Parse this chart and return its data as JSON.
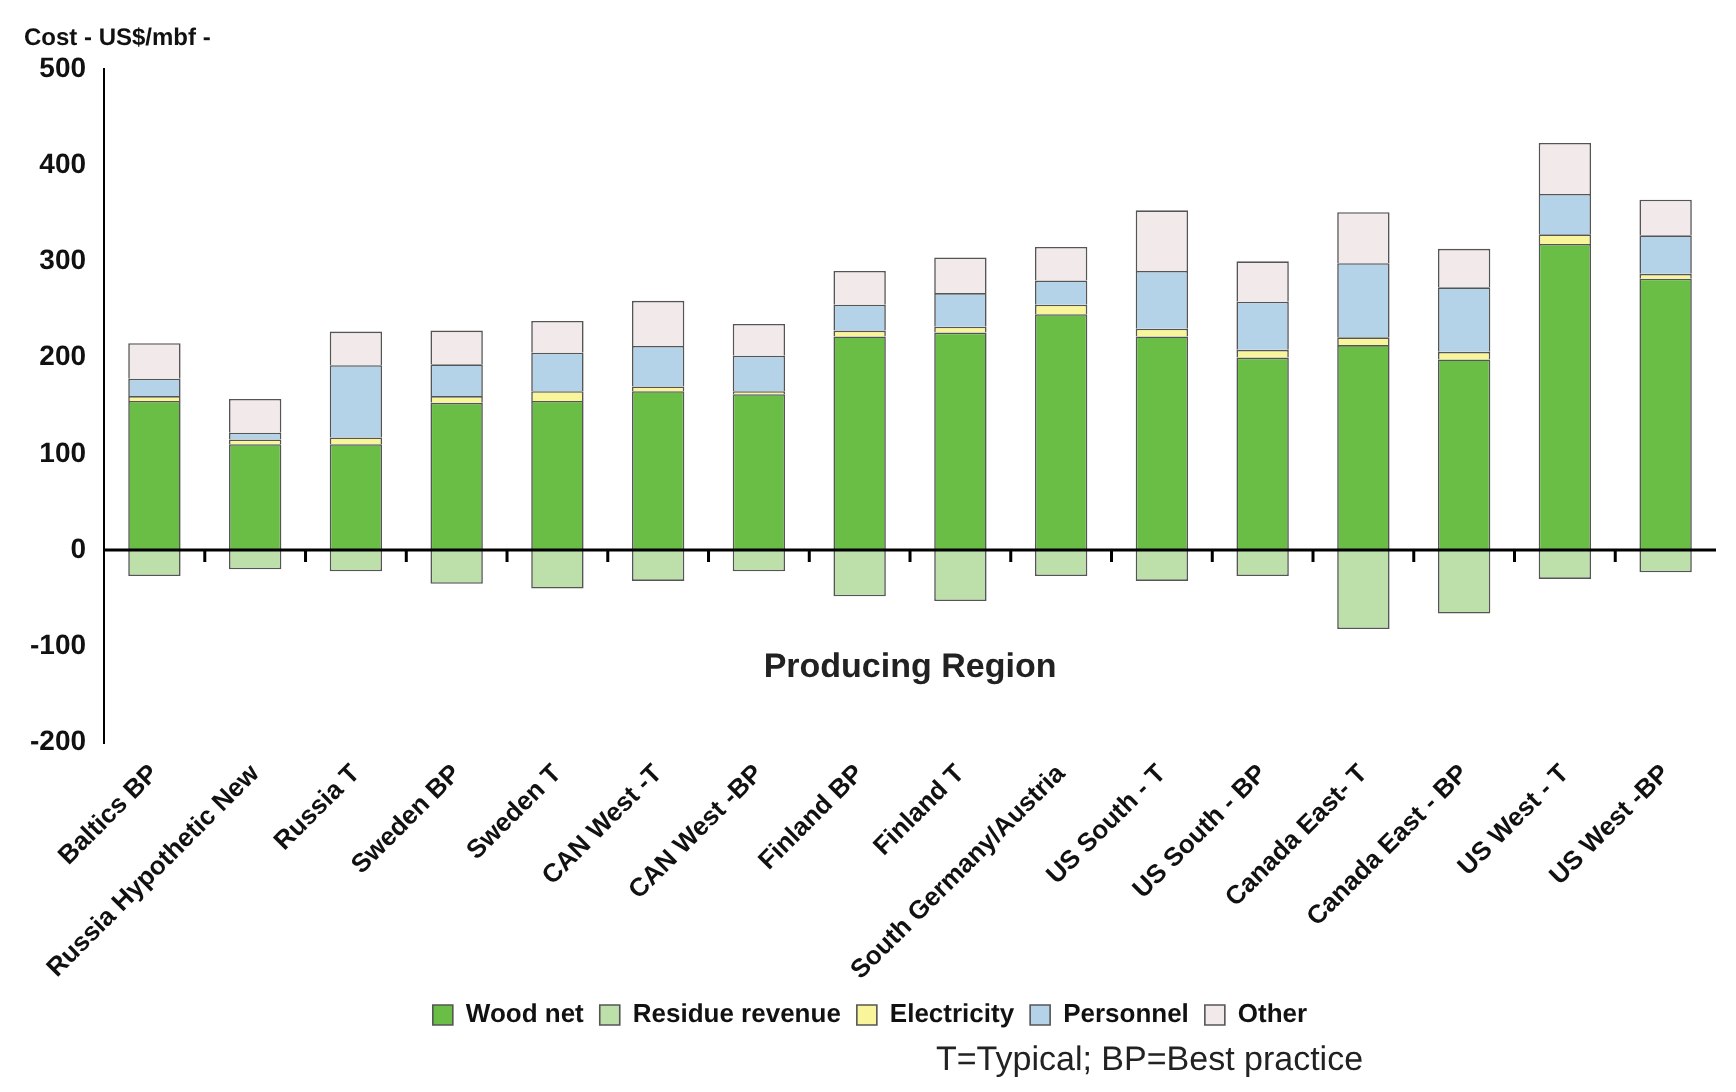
{
  "chart_data": {
    "type": "bar",
    "ylabel": "Cost - US$/mbf -",
    "xlabel": "Producing Region",
    "stacked": true,
    "legend": "bottom",
    "ylim": [
      -200,
      500
    ],
    "yticks": [
      -200,
      -100,
      0,
      100,
      200,
      300,
      400,
      500
    ],
    "categories": [
      "Baltics BP",
      "Russia Hypothetic New",
      "Russia T",
      "Sweden BP",
      "Sweden T",
      "CAN West -T",
      "CAN West -BP",
      "Finland BP",
      "Finland T",
      "South Germany/Austria",
      "US South - T",
      "US South - BP",
      "Canada East- T",
      "Canada East - BP",
      "US West - T",
      "US West -BP"
    ],
    "series": [
      {
        "name": "Wood net",
        "color": "#6abd45",
        "values": [
          155,
          110,
          110,
          153,
          155,
          165,
          162,
          222,
          226,
          245,
          222,
          200,
          213,
          198,
          318,
          282
        ]
      },
      {
        "name": "Residue revenue",
        "color": "#bddfaa",
        "values": [
          -27,
          -20,
          -22,
          -35,
          -40,
          -32,
          -22,
          -48,
          -53,
          -27,
          -32,
          -27,
          -82,
          -66,
          -30,
          -23
        ]
      },
      {
        "name": "Electricity",
        "color": "#f8f59a",
        "values": [
          5,
          5,
          7,
          7,
          10,
          5,
          3,
          6,
          6,
          10,
          8,
          8,
          8,
          8,
          10,
          5
        ]
      },
      {
        "name": "Personnel",
        "color": "#b5d3e8",
        "values": [
          18,
          7,
          75,
          33,
          40,
          42,
          37,
          27,
          35,
          25,
          60,
          50,
          77,
          67,
          42,
          40
        ]
      },
      {
        "name": "Other",
        "color": "#f2e9ea",
        "values": [
          37,
          35,
          35,
          35,
          33,
          47,
          33,
          35,
          37,
          35,
          63,
          42,
          53,
          40,
          53,
          37
        ]
      }
    ],
    "annotations": [
      "T=Typical; BP=Best practice"
    ]
  }
}
